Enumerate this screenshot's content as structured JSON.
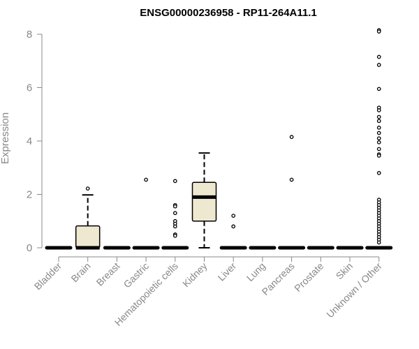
{
  "chart_data": {
    "type": "box",
    "title": "ENSG00000236958 - RP11-264A11.1",
    "xlabel": "",
    "ylabel": "Expression",
    "ylim": [
      0,
      8
    ],
    "yticks": [
      0,
      2,
      4,
      6,
      8
    ],
    "box_color": "#efe8d0",
    "categories": [
      "Bladder",
      "Brain",
      "Breast",
      "Gastric",
      "Hematopoietic cells",
      "Kidney",
      "Liver",
      "Lung",
      "Pancreas",
      "Prostate",
      "Skin",
      "Unknown / Other"
    ],
    "boxes": [
      {
        "category": "Bladder",
        "min": 0,
        "q1": 0,
        "median": 0,
        "q3": 0,
        "max": 0,
        "outliers": []
      },
      {
        "category": "Brain",
        "min": 0,
        "q1": 0,
        "median": 0,
        "q3": 0.82,
        "max": 1.98,
        "outliers": [
          2.22
        ]
      },
      {
        "category": "Breast",
        "min": 0,
        "q1": 0,
        "median": 0,
        "q3": 0,
        "max": 0,
        "outliers": []
      },
      {
        "category": "Gastric",
        "min": 0,
        "q1": 0,
        "median": 0,
        "q3": 0,
        "max": 0,
        "outliers": [
          2.55
        ]
      },
      {
        "category": "Hematopoietic cells",
        "min": 0,
        "q1": 0,
        "median": 0,
        "q3": 0,
        "max": 0,
        "outliers": [
          2.5,
          1.6,
          1.55,
          1.3,
          1.0,
          0.9,
          0.8,
          0.5,
          0.45
        ]
      },
      {
        "category": "Kidney",
        "min": 0,
        "q1": 1.0,
        "median": 1.9,
        "q3": 2.45,
        "max": 3.55,
        "outliers": []
      },
      {
        "category": "Liver",
        "min": 0,
        "q1": 0,
        "median": 0,
        "q3": 0,
        "max": 0,
        "outliers": [
          1.2,
          0.8
        ]
      },
      {
        "category": "Lung",
        "min": 0,
        "q1": 0,
        "median": 0,
        "q3": 0,
        "max": 0,
        "outliers": []
      },
      {
        "category": "Pancreas",
        "min": 0,
        "q1": 0,
        "median": 0,
        "q3": 0,
        "max": 0,
        "outliers": [
          4.15,
          2.55
        ]
      },
      {
        "category": "Prostate",
        "min": 0,
        "q1": 0,
        "median": 0,
        "q3": 0,
        "max": 0,
        "outliers": []
      },
      {
        "category": "Skin",
        "min": 0,
        "q1": 0,
        "median": 0,
        "q3": 0,
        "max": 0,
        "outliers": []
      },
      {
        "category": "Unknown / Other",
        "min": 0,
        "q1": 0,
        "median": 0,
        "q3": 0,
        "max": 0,
        "outliers": [
          8.15,
          8.1,
          7.15,
          6.85,
          5.95,
          5.25,
          5.15,
          4.9,
          4.75,
          4.5,
          4.3,
          4.1,
          3.95,
          3.7,
          3.5,
          3.45,
          2.8,
          1.8,
          1.7,
          1.6,
          1.5,
          1.4,
          1.3,
          1.2,
          1.1,
          1.0,
          0.9,
          0.8,
          0.7,
          0.6,
          0.5,
          0.4,
          0.3,
          0.2
        ]
      }
    ]
  }
}
